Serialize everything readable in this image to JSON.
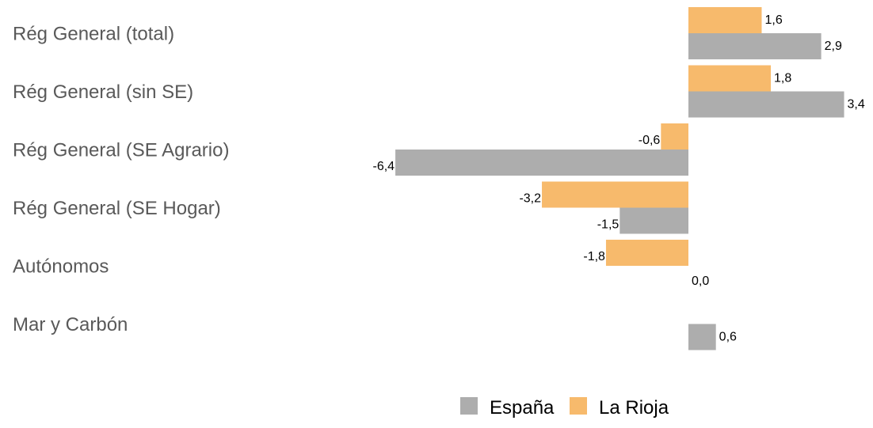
{
  "chart_data": {
    "type": "bar",
    "orientation": "horizontal",
    "categories": [
      "Rég General (total)",
      "Rég General (sin SE)",
      "Rég General (SE Agrario)",
      "Rég General (SE Hogar)",
      "Autónomos",
      "Mar y Carbón"
    ],
    "series": [
      {
        "name": "La Rioja",
        "color": "#F7BA6C",
        "values": [
          1.6,
          1.8,
          -0.6,
          -3.2,
          -1.8,
          null
        ],
        "labels": [
          "1,6",
          "1,8",
          "-0,6",
          "-3,2",
          "-1,8",
          ""
        ]
      },
      {
        "name": "España",
        "color": "#ADADAD",
        "values": [
          2.9,
          3.4,
          -6.4,
          -1.5,
          0.0,
          0.6
        ],
        "labels": [
          "2,9",
          "3,4",
          "-6,4",
          "-1,5",
          "0,0",
          "0,6"
        ]
      }
    ],
    "legend": {
      "position": "bottom",
      "order": [
        "España",
        "La Rioja"
      ]
    },
    "grid": false
  }
}
